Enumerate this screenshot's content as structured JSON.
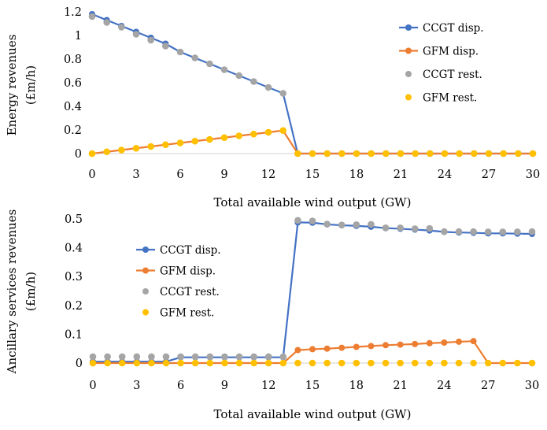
{
  "colors": {
    "ccgt_disp": "#4472C4",
    "gfm_disp": "#ED7D31",
    "ccgt_rest": "#A5A5A5",
    "gfm_rest": "#FFC000"
  },
  "chart_data": [
    {
      "type": "line",
      "xlabel": "Total available wind output (GW)",
      "ylabel_line1": "Energy revenues",
      "ylabel_line2": "(£m/h)",
      "xlim": [
        0,
        30
      ],
      "ylim": [
        0,
        1.2
      ],
      "xticks": [
        "0",
        "3",
        "6",
        "9",
        "12",
        "15",
        "18",
        "21",
        "24",
        "27",
        "30"
      ],
      "yticks": [
        "0",
        "0.2",
        "0.4",
        "0.6",
        "0.8",
        "1",
        "1.2"
      ],
      "legend_position": "top-right",
      "x": [
        0,
        1,
        2,
        3,
        4,
        5,
        6,
        7,
        8,
        9,
        10,
        11,
        12,
        13,
        14,
        15,
        16,
        17,
        18,
        19,
        20,
        21,
        22,
        23,
        24,
        25,
        26,
        27,
        28,
        29,
        30
      ],
      "series": [
        {
          "name": "CCGT disp.",
          "style": "line",
          "color": "#4472C4",
          "values": [
            1.18,
            1.13,
            1.08,
            1.03,
            0.98,
            0.93,
            0.86,
            0.81,
            0.76,
            0.71,
            0.66,
            0.61,
            0.56,
            0.51,
            0,
            0,
            0,
            0,
            0,
            0,
            0,
            0,
            0,
            0,
            0,
            0,
            0,
            0,
            0,
            0,
            0
          ]
        },
        {
          "name": "GFM disp.",
          "style": "line",
          "color": "#ED7D31",
          "values": [
            0,
            0.015,
            0.03,
            0.045,
            0.06,
            0.075,
            0.09,
            0.105,
            0.12,
            0.135,
            0.15,
            0.165,
            0.18,
            0.195,
            0,
            0,
            0,
            0,
            0,
            0,
            0,
            0,
            0,
            0,
            0,
            0,
            0,
            0,
            0,
            0,
            0
          ]
        },
        {
          "name": "CCGT rest.",
          "style": "scatter",
          "color": "#A5A5A5",
          "values": [
            1.16,
            1.11,
            1.07,
            1.01,
            0.96,
            0.91,
            0.86,
            0.81,
            0.76,
            0.71,
            0.66,
            0.61,
            0.56,
            0.51,
            0,
            0,
            0,
            0,
            0,
            0,
            0,
            0,
            0,
            0,
            0,
            0,
            0,
            0,
            0,
            0,
            0
          ]
        },
        {
          "name": "GFM rest.",
          "style": "scatter",
          "color": "#FFC000",
          "values": [
            0,
            0.015,
            0.03,
            0.045,
            0.06,
            0.075,
            0.09,
            0.105,
            0.12,
            0.135,
            0.15,
            0.165,
            0.18,
            0.195,
            0,
            0,
            0,
            0,
            0,
            0,
            0,
            0,
            0,
            0,
            0,
            0,
            0,
            0,
            0,
            0,
            0
          ]
        }
      ]
    },
    {
      "type": "line",
      "xlabel": "Total available wind output (GW)",
      "ylabel_line1": "Ancillary services revenues",
      "ylabel_line2": "(£m/h)",
      "xlim": [
        0,
        30
      ],
      "ylim": [
        0,
        0.5
      ],
      "xticks": [
        "0",
        "3",
        "6",
        "9",
        "12",
        "15",
        "18",
        "21",
        "24",
        "27",
        "30"
      ],
      "yticks": [
        "0",
        "0.1",
        "0.2",
        "0.3",
        "0.4",
        "0.5"
      ],
      "legend_position": "center-left",
      "x": [
        0,
        1,
        2,
        3,
        4,
        5,
        6,
        7,
        8,
        9,
        10,
        11,
        12,
        13,
        14,
        15,
        16,
        17,
        18,
        19,
        20,
        21,
        22,
        23,
        24,
        25,
        26,
        27,
        28,
        29,
        30
      ],
      "series": [
        {
          "name": "CCGT disp.",
          "style": "line",
          "color": "#4472C4",
          "values": [
            0.005,
            0.005,
            0.005,
            0.005,
            0.005,
            0.005,
            0.02,
            0.02,
            0.02,
            0.02,
            0.02,
            0.02,
            0.02,
            0.02,
            0.488,
            0.487,
            0.481,
            0.478,
            0.476,
            0.473,
            0.468,
            0.466,
            0.463,
            0.46,
            0.455,
            0.453,
            0.452,
            0.45,
            0.45,
            0.449,
            0.448
          ]
        },
        {
          "name": "GFM disp.",
          "style": "line",
          "color": "#ED7D31",
          "values": [
            0,
            0,
            0,
            0,
            0,
            0,
            0,
            0,
            0,
            0,
            0,
            0,
            0,
            0,
            0.045,
            0.048,
            0.05,
            0.053,
            0.056,
            0.059,
            0.062,
            0.064,
            0.066,
            0.069,
            0.071,
            0.074,
            0.076,
            0,
            0,
            0,
            0
          ]
        },
        {
          "name": "CCGT rest.",
          "style": "scatter",
          "color": "#A5A5A5",
          "values": [
            0.022,
            0.022,
            0.022,
            0.022,
            0.022,
            0.022,
            0.022,
            0.022,
            0.022,
            0.022,
            0.022,
            0.022,
            0.022,
            0.022,
            0.495,
            0.493,
            0.482,
            0.479,
            0.48,
            0.481,
            0.469,
            0.469,
            0.466,
            0.467,
            0.456,
            0.456,
            0.456,
            0.455,
            0.455,
            0.455,
            0.456
          ]
        },
        {
          "name": "GFM rest.",
          "style": "scatter",
          "color": "#FFC000",
          "values": [
            0,
            0,
            0,
            0,
            0,
            0,
            0,
            0,
            0,
            0,
            0,
            0,
            0,
            0,
            0,
            0,
            0,
            0,
            0,
            0,
            0,
            0,
            0,
            0,
            0,
            0,
            0,
            0,
            0,
            0,
            0
          ]
        }
      ]
    }
  ]
}
